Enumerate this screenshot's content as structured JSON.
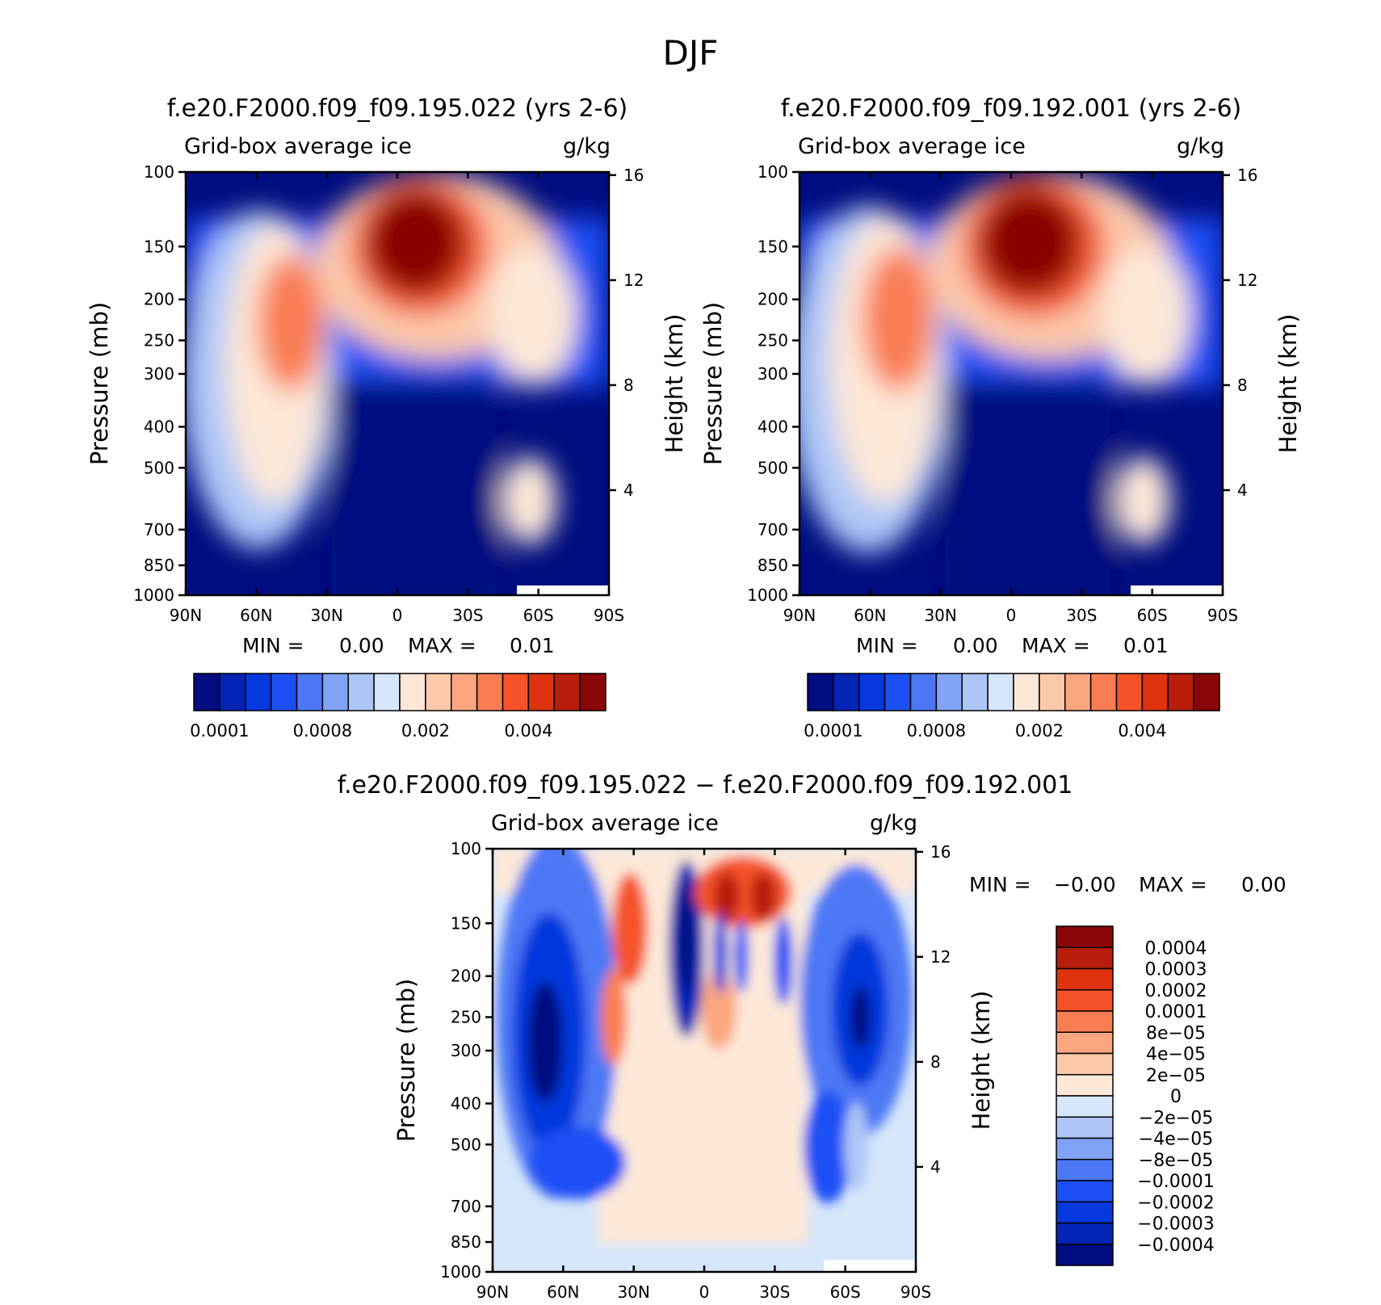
{
  "figure_title": "DJF",
  "chart_data": [
    {
      "type": "heatmap",
      "title": "f.e20.F2000.f09_f09.195.022 (yrs 2-6)",
      "variable": "Grid-box average ice",
      "units": "g/kg",
      "ylabel": "Pressure (mb)",
      "ylabel_right": "Height (km)",
      "x_ticks": [
        "90N",
        "60N",
        "30N",
        "0",
        "30S",
        "60S",
        "90S"
      ],
      "pressure_ticks": [
        100,
        150,
        200,
        250,
        300,
        400,
        500,
        700,
        850,
        1000
      ],
      "height_ticks": [
        16,
        12,
        8,
        4
      ],
      "stats": {
        "min_label": "MIN =",
        "min": "0.00",
        "max_label": "MAX =",
        "max": "0.01"
      },
      "colorbar": {
        "orientation": "horizontal",
        "colors": [
          "#000d80",
          "#0225b6",
          "#0538dd",
          "#1c50f5",
          "#4d78f5",
          "#80a3f5",
          "#adc6f7",
          "#d6e6fa",
          "#fde8d8",
          "#fcc8aa",
          "#fba67f",
          "#f97d52",
          "#f5522a",
          "#df320f",
          "#b81e0b",
          "#8a0606"
        ],
        "labels": [
          "0.0001",
          "0.0008",
          "0.002",
          "0.004"
        ],
        "label_positions": [
          1,
          5,
          9,
          13
        ]
      }
    },
    {
      "type": "heatmap",
      "title": "f.e20.F2000.f09_f09.192.001 (yrs 2-6)",
      "variable": "Grid-box average ice",
      "units": "g/kg",
      "ylabel": "Pressure (mb)",
      "ylabel_right": "Height (km)",
      "x_ticks": [
        "90N",
        "60N",
        "30N",
        "0",
        "30S",
        "60S",
        "90S"
      ],
      "pressure_ticks": [
        100,
        150,
        200,
        250,
        300,
        400,
        500,
        700,
        850,
        1000
      ],
      "height_ticks": [
        16,
        12,
        8,
        4
      ],
      "stats": {
        "min_label": "MIN =",
        "min": "0.00",
        "max_label": "MAX =",
        "max": "0.01"
      },
      "colorbar": {
        "orientation": "horizontal",
        "colors": [
          "#000d80",
          "#0225b6",
          "#0538dd",
          "#1c50f5",
          "#4d78f5",
          "#80a3f5",
          "#adc6f7",
          "#d6e6fa",
          "#fde8d8",
          "#fcc8aa",
          "#fba67f",
          "#f97d52",
          "#f5522a",
          "#df320f",
          "#b81e0b",
          "#8a0606"
        ],
        "labels": [
          "0.0001",
          "0.0008",
          "0.002",
          "0.004"
        ],
        "label_positions": [
          1,
          5,
          9,
          13
        ]
      }
    },
    {
      "type": "heatmap",
      "title": "f.e20.F2000.f09_f09.195.022 − f.e20.F2000.f09_f09.192.001",
      "variable": "Grid-box average ice",
      "units": "g/kg",
      "ylabel": "Pressure (mb)",
      "ylabel_right": "Height (km)",
      "x_ticks": [
        "90N",
        "60N",
        "30N",
        "0",
        "30S",
        "60S",
        "90S"
      ],
      "pressure_ticks": [
        100,
        150,
        200,
        250,
        300,
        400,
        500,
        700,
        850,
        1000
      ],
      "height_ticks": [
        16,
        12,
        8,
        4
      ],
      "stats": {
        "min_label": "MIN =",
        "min": "−0.00",
        "max_label": "MAX =",
        "max": "0.00"
      },
      "colorbar": {
        "orientation": "vertical",
        "colors": [
          "#8a0606",
          "#b81e0b",
          "#df320f",
          "#f5522a",
          "#f97d52",
          "#fba67f",
          "#fcc8aa",
          "#fde8d8",
          "#d6e6fa",
          "#adc6f7",
          "#80a3f5",
          "#4d78f5",
          "#1c50f5",
          "#0538dd",
          "#0225b6",
          "#000d80"
        ],
        "labels": [
          "0.0004",
          "0.0003",
          "0.0002",
          "0.0001",
          "8e−05",
          "4e−05",
          "2e−05",
          "0",
          "−2e−05",
          "−4e−05",
          "−8e−05",
          "−0.0001",
          "−0.0002",
          "−0.0003",
          "−0.0004"
        ]
      }
    }
  ]
}
